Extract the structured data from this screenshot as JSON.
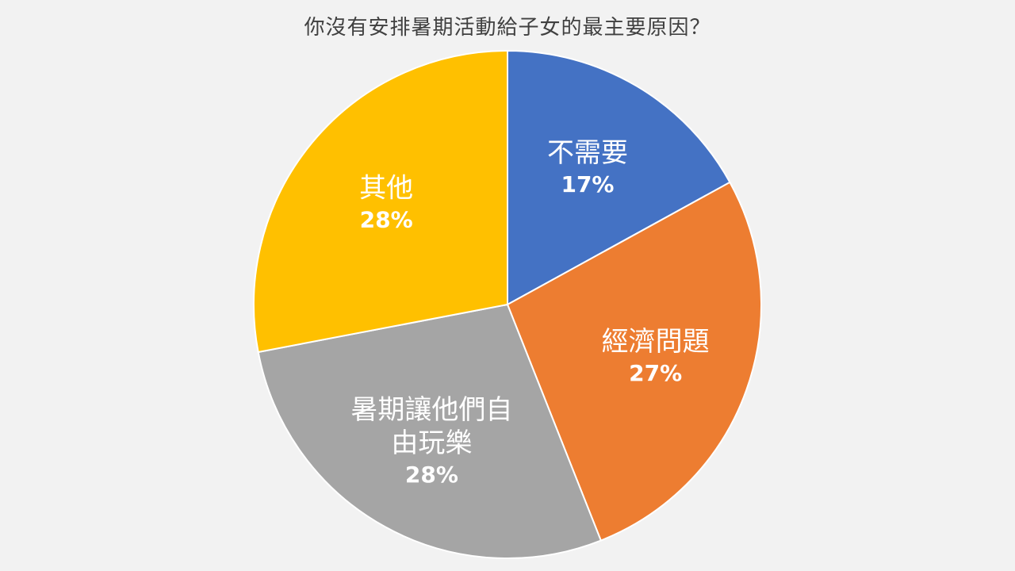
{
  "chart_data": {
    "type": "pie",
    "title": "你沒有安排暑期活動給子女的最主要原因？",
    "categories": [
      "不需要",
      "經濟問題",
      "暑期讓他們自由玩樂",
      "其他"
    ],
    "values": [
      17,
      27,
      28,
      28
    ],
    "data_labels": [
      "17%",
      "27%",
      "28%",
      "28%"
    ],
    "label_lines": [
      [
        "不需要"
      ],
      [
        "經濟問題"
      ],
      [
        "暑期讓他們自",
        "由玩樂"
      ],
      [
        "其他"
      ]
    ],
    "colors": [
      "#4472c4",
      "#ed7d31",
      "#a5a5a5",
      "#ffc000"
    ],
    "start_angle_deg": 0,
    "direction": "clockwise",
    "legend": "none"
  }
}
